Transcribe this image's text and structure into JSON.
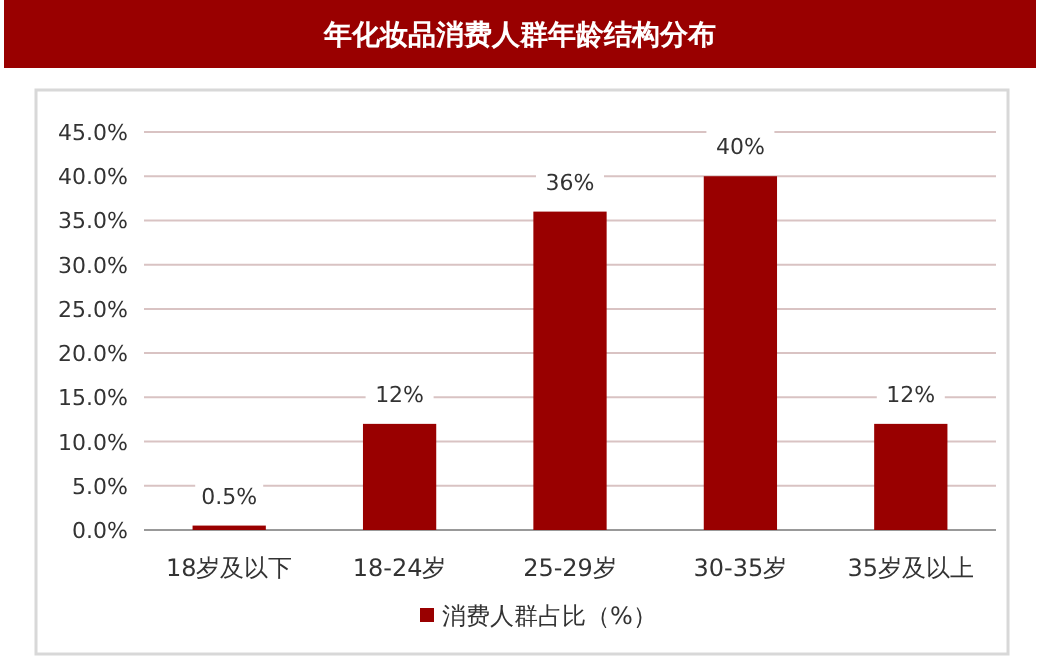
{
  "chart_data": {
    "type": "bar",
    "title": "年化妆品消费人群年龄结构分布",
    "categories": [
      "18岁及以下",
      "18-24岁",
      "25-29岁",
      "30-35岁",
      "35岁及以上"
    ],
    "series": [
      {
        "name": "消费人群占比（%）",
        "color": "#990000",
        "values": [
          0.5,
          12,
          36,
          40,
          12
        ],
        "value_labels": [
          "0.5%",
          "12%",
          "36%",
          "40%",
          "12%"
        ]
      }
    ],
    "ylim": [
      0,
      45
    ],
    "yticks": [
      {
        "value": 0,
        "label": "0.0%"
      },
      {
        "value": 5,
        "label": "5.0%"
      },
      {
        "value": 10,
        "label": "10.0%"
      },
      {
        "value": 15,
        "label": "15.0%"
      },
      {
        "value": 20,
        "label": "20.0%"
      },
      {
        "value": 25,
        "label": "25.0%"
      },
      {
        "value": 30,
        "label": "30.0%"
      },
      {
        "value": 35,
        "label": "35.0%"
      },
      {
        "value": 40,
        "label": "40.0%"
      },
      {
        "value": 45,
        "label": "45.0%"
      }
    ],
    "grid": "y",
    "legend": "bottom"
  }
}
